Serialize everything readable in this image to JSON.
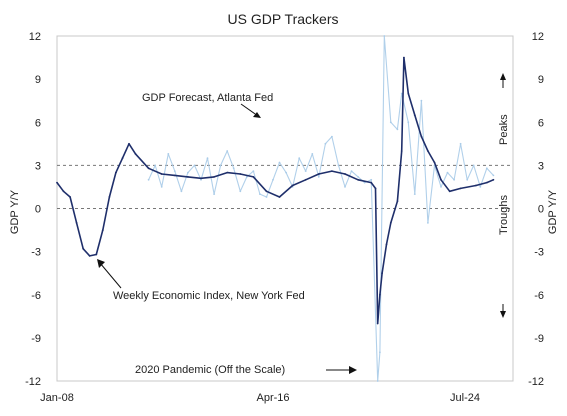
{
  "chart_data": {
    "type": "line",
    "title": "US GDP Trackers",
    "ylabel_left": "GDP Y/Y",
    "ylabel_right": "GDP Y/Y",
    "ylim": [
      -12,
      12
    ],
    "yticks": [
      12,
      9,
      6,
      3,
      0,
      -3,
      -6,
      -9,
      -12
    ],
    "xlim": [
      "2008-01",
      "2025-06"
    ],
    "xticks": [
      "Jan-08",
      "Apr-16",
      "Jul-24"
    ],
    "reference_lines": [
      3,
      0
    ],
    "annotations": {
      "atlanta": "GDP Forecast, Atlanta Fed",
      "weekly": "Weekly Economic Index, New York Fed",
      "pandemic": "2020 Pandemic (Off the Scale)",
      "peaks": "Peaks",
      "troughs": "Troughs"
    },
    "series": [
      {
        "name": "Weekly Economic Index, New York Fed",
        "color": "#1f2f6b",
        "x": [
          "2008-01",
          "2008-04",
          "2008-07",
          "2008-10",
          "2009-01",
          "2009-04",
          "2009-07",
          "2009-10",
          "2010-01",
          "2010-04",
          "2010-07",
          "2010-10",
          "2011-01",
          "2011-07",
          "2012-01",
          "2012-07",
          "2013-01",
          "2013-07",
          "2014-01",
          "2014-07",
          "2015-01",
          "2015-07",
          "2016-01",
          "2016-07",
          "2017-01",
          "2017-07",
          "2018-01",
          "2018-07",
          "2019-01",
          "2019-07",
          "2020-01",
          "2020-03",
          "2020-04",
          "2020-05",
          "2020-06",
          "2020-08",
          "2020-10",
          "2020-12",
          "2021-01",
          "2021-03",
          "2021-04",
          "2021-06",
          "2021-09",
          "2021-12",
          "2022-03",
          "2022-06",
          "2022-09",
          "2023-01",
          "2023-06",
          "2024-01",
          "2024-06",
          "2024-09"
        ],
        "y": [
          1.8,
          1.2,
          0.8,
          -1.0,
          -2.8,
          -3.3,
          -3.2,
          -1.5,
          0.8,
          2.5,
          3.5,
          4.5,
          3.8,
          2.8,
          2.4,
          2.3,
          2.2,
          2.1,
          2.2,
          2.5,
          2.4,
          2.2,
          1.2,
          0.8,
          1.6,
          2.0,
          2.4,
          2.6,
          2.4,
          2.0,
          1.8,
          1.4,
          -8.0,
          -6.0,
          -4.5,
          -2.5,
          -1.0,
          0.0,
          0.5,
          4.0,
          10.5,
          8.0,
          6.5,
          5.0,
          4.0,
          3.2,
          2.0,
          1.2,
          1.4,
          1.6,
          1.8,
          2.0
        ]
      },
      {
        "name": "GDP Forecast, Atlanta Fed",
        "color": "#a9cbe8",
        "x": [
          "2011-07",
          "2011-10",
          "2012-01",
          "2012-04",
          "2012-07",
          "2012-10",
          "2013-01",
          "2013-04",
          "2013-07",
          "2013-10",
          "2014-01",
          "2014-04",
          "2014-07",
          "2014-10",
          "2015-01",
          "2015-04",
          "2015-07",
          "2015-10",
          "2016-01",
          "2016-04",
          "2016-07",
          "2016-10",
          "2017-01",
          "2017-04",
          "2017-07",
          "2017-10",
          "2018-01",
          "2018-04",
          "2018-07",
          "2018-10",
          "2019-01",
          "2019-04",
          "2019-07",
          "2019-10",
          "2020-01",
          "2020-04",
          "2020-05",
          "2020-07",
          "2020-10",
          "2021-01",
          "2021-03",
          "2021-06",
          "2021-09",
          "2021-12",
          "2022-03",
          "2022-06",
          "2022-09",
          "2022-12",
          "2023-03",
          "2023-06",
          "2023-09",
          "2023-12",
          "2024-03",
          "2024-06",
          "2024-09"
        ],
        "y": [
          2.0,
          3.0,
          1.5,
          3.8,
          2.6,
          1.2,
          2.5,
          3.0,
          2.0,
          3.5,
          1.0,
          3.0,
          4.0,
          2.8,
          1.2,
          2.2,
          2.6,
          1.0,
          0.8,
          2.0,
          3.2,
          2.5,
          1.5,
          3.5,
          2.6,
          3.8,
          2.2,
          4.5,
          5.0,
          3.0,
          1.5,
          2.6,
          2.2,
          1.8,
          2.0,
          -12.0,
          -10.0,
          12.0,
          6.0,
          5.5,
          8.0,
          6.0,
          1.0,
          7.5,
          -1.0,
          3.0,
          1.5,
          2.5,
          2.0,
          4.5,
          2.0,
          3.0,
          1.5,
          2.8,
          2.3
        ]
      }
    ]
  }
}
